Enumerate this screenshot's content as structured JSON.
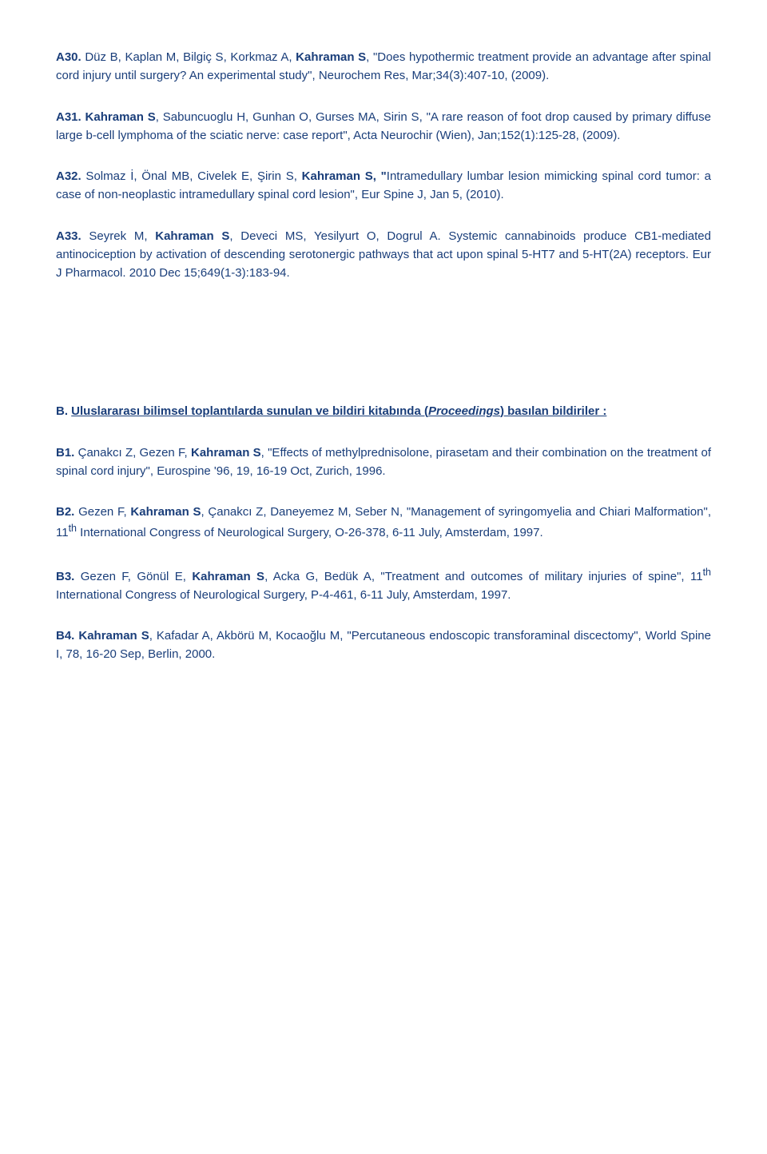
{
  "colors": {
    "text": "#1a3e7a",
    "background": "#ffffff"
  },
  "typography": {
    "font_family": "Verdana, Geneva, sans-serif",
    "font_size_pt": 11,
    "line_height": 1.55
  },
  "entries_a": [
    {
      "label": "A30.",
      "pre": " Düz B, Kaplan M, Bilgiç S, Korkmaz A, ",
      "bold": "Kahraman S",
      "post": ", \"Does hypothermic treatment provide an advantage after spinal cord injury until surgery? An experimental study\", Neurochem Res, Mar;34(3):407-10, (2009)."
    },
    {
      "label": "A31.",
      "pre": " ",
      "bold": "Kahraman S",
      "post": ", Sabuncuoglu H, Gunhan O, Gurses MA, Sirin S, \"A rare reason of foot drop caused by primary diffuse large b-cell lymphoma of the sciatic nerve: case report\", Acta Neurochir (Wien), Jan;152(1):125-28, (2009)."
    },
    {
      "label": "A32.",
      "pre": " Solmaz İ, Önal MB, Civelek E, Şirin S, ",
      "bold": "Kahraman S, \"",
      "post": "Intramedullary lumbar lesion mimicking spinal cord tumor: a case of non-neoplastic intramedullary spinal cord lesion\", Eur Spine J, Jan 5, (2010)."
    },
    {
      "label": "A33.",
      "pre": " Seyrek M, ",
      "bold": "Kahraman S",
      "post": ", Deveci MS, Yesilyurt O, Dogrul A. Systemic cannabinoids produce CB1-mediated antinociception by activation of descending serotonergic pathways that act upon spinal 5-HT7 and 5-HT(2A) receptors. Eur J Pharmacol. 2010 Dec 15;649(1-3):183-94."
    }
  ],
  "section_b": {
    "heading_part1": "B. ",
    "heading_part2": "Uluslararası bilimsel toplantılarda sunulan ve bildiri kitabında (",
    "heading_italic": "Proceedings",
    "heading_part3": ") basılan bildiriler :"
  },
  "entries_b": [
    {
      "label": "B1.",
      "pre": " Çanakcı Z, Gezen F, ",
      "bold": "Kahraman S",
      "post": ", \"Effects of methylprednisolone, pirasetam and their combination on the treatment of spinal cord injury\", Eurospine '96, 19, 16-19 Oct, Zurich, 1996."
    },
    {
      "label": "B2.",
      "pre": " Gezen F, ",
      "bold": "Kahraman S",
      "post": ", Çanakcı Z, Daneyemez M, Seber N, \"Management of syringomyelia and Chiari Malformation\", 11",
      "sup": "th",
      "post2": " International Congress of Neurological Surgery, O-26-378, 6-11 July, Amsterdam, 1997."
    },
    {
      "label": "B3.",
      "pre": " Gezen F, Gönül E, ",
      "bold": "Kahraman S",
      "post": ", Acka G, Bedük A, \"Treatment and outcomes of military injuries of spine\", 11",
      "sup": "th",
      "post2": " International Congress of Neurological Surgery, P-4-461, 6-11 July, Amsterdam, 1997."
    },
    {
      "label": "B4.",
      "pre": " ",
      "bold": "Kahraman S",
      "post": ", Kafadar A, Akbörü M, Kocaoğlu M, \"Percutaneous endoscopic transforaminal discectomy\", World Spine I, 78, 16-20 Sep, Berlin, 2000."
    }
  ]
}
